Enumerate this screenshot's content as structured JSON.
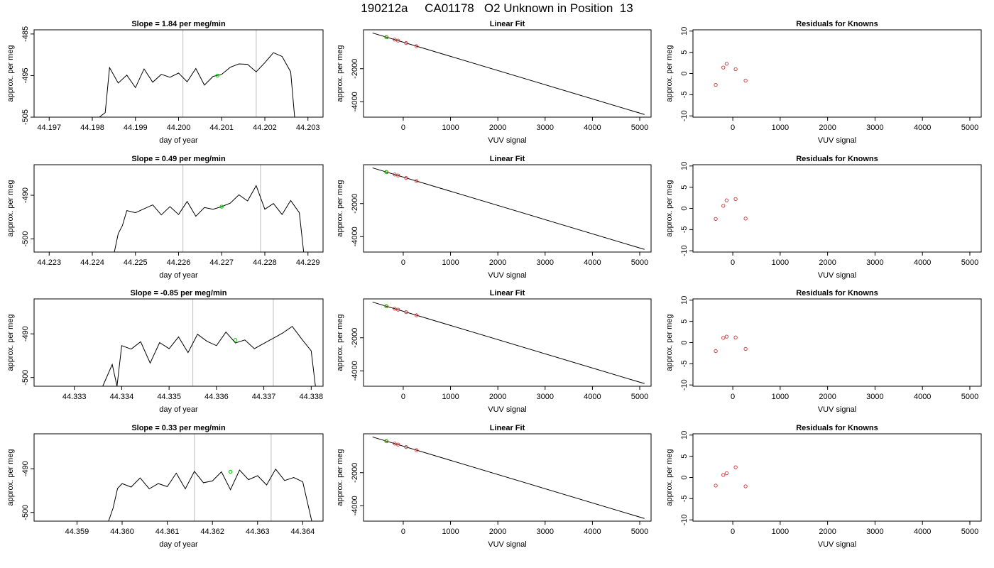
{
  "page": {
    "title": "190212a     CA01178   O2 Unknown in Position  13"
  },
  "chart_data": [
    {
      "row": 1,
      "col": 1,
      "type": "line",
      "title": "Slope =  1.84  per meg/min",
      "xlabel": "day of year",
      "ylabel": "approx. per meg",
      "xlim": [
        44.19665,
        44.20335
      ],
      "ylim": [
        -505,
        -484
      ],
      "xticks": [
        44.197,
        44.198,
        44.199,
        44.2,
        44.201,
        44.202,
        44.203
      ],
      "xtick_labels": [
        "44.197",
        "44.198",
        "44.199",
        "44.200",
        "44.201",
        "44.202",
        "44.203"
      ],
      "yticks": [
        -505,
        -495,
        -485
      ],
      "ytick_labels": [
        "-505",
        "-495",
        "-485"
      ],
      "vlines": [
        44.2001,
        44.2018
      ],
      "series": [
        {
          "x": [
            44.1981,
            44.1983,
            44.1984,
            44.1986,
            44.1988,
            44.199,
            44.1992,
            44.1994,
            44.1996,
            44.1998,
            44.2,
            44.2002,
            44.2004,
            44.2006,
            44.2008,
            44.201,
            44.2012,
            44.2014,
            44.2016,
            44.2018,
            44.202,
            44.2022,
            44.2024,
            44.2026,
            44.2027
          ],
          "values": [
            -505.5,
            -503.9,
            -493.1,
            -496.8,
            -494.9,
            -497.9,
            -493.4,
            -496.6,
            -494.7,
            -495.4,
            -494.4,
            -496.5,
            -493.3,
            -497.3,
            -495.2,
            -494.7,
            -493.0,
            -492.2,
            -492.3,
            -494.1,
            -491.9,
            -489.5,
            -490.4,
            -494.1,
            -506.0
          ]
        }
      ],
      "marker": {
        "x": 44.2009,
        "y": -495.0,
        "color": "#00cc00"
      }
    },
    {
      "row": 1,
      "col": 2,
      "type": "scatter",
      "title": "Linear Fit",
      "xlabel": "VUV signal",
      "ylabel": "approx. per meg",
      "xlim": [
        -840,
        5240
      ],
      "ylim": [
        -4930,
        350
      ],
      "xticks": [
        0,
        1000,
        2000,
        3000,
        4000,
        5000
      ],
      "xtick_labels": [
        "0",
        "1000",
        "2000",
        "3000",
        "4000",
        "5000"
      ],
      "yticks": [
        -2000,
        -4000
      ],
      "ytick_labels": [
        "-2000",
        "-4000"
      ],
      "fit_line": {
        "x": [
          -650,
          5100
        ],
        "y": [
          160,
          -4770
        ]
      },
      "series": [
        {
          "name": "",
          "x": [
            -350,
            -180,
            -110,
            60,
            280
          ],
          "values": [
            -100,
            -240,
            -300,
            -450,
            -640
          ],
          "color": "#cc3333"
        }
      ],
      "marker": {
        "x": -360,
        "y": -90,
        "color": "#00cc00"
      }
    },
    {
      "row": 1,
      "col": 3,
      "type": "scatter",
      "title": "Residuals for Knowns",
      "xlabel": "VUV signal",
      "ylabel": "approx. per meg",
      "xlim": [
        -840,
        5240
      ],
      "ylim": [
        -10.3,
        10.3
      ],
      "xticks": [
        0,
        1000,
        2000,
        3000,
        4000,
        5000
      ],
      "xtick_labels": [
        "0",
        "1000",
        "2000",
        "3000",
        "4000",
        "5000"
      ],
      "yticks": [
        -10,
        -5,
        0,
        5,
        10
      ],
      "ytick_labels": [
        "-10",
        "-5",
        "0",
        "5",
        "10"
      ],
      "series": [
        {
          "name": "",
          "x": [
            -360,
            -200,
            -130,
            60,
            270
          ],
          "values": [
            -2.7,
            1.4,
            2.3,
            1.0,
            -1.7
          ],
          "color": "#cc3333"
        }
      ]
    },
    {
      "row": 2,
      "col": 1,
      "type": "line",
      "title": "Slope =  0.49  per meg/min",
      "xlabel": "day of year",
      "ylabel": "approx. per meg",
      "xlim": [
        44.22265,
        44.22935
      ],
      "ylim": [
        -503,
        -483
      ],
      "xticks": [
        44.223,
        44.224,
        44.225,
        44.226,
        44.227,
        44.228,
        44.229
      ],
      "xtick_labels": [
        "44.223",
        "44.224",
        "44.225",
        "44.226",
        "44.227",
        "44.228",
        "44.229"
      ],
      "yticks": [
        -500,
        -490
      ],
      "ytick_labels": [
        "-500",
        "-490"
      ],
      "vlines": [
        44.2261,
        44.2279
      ],
      "series": [
        {
          "x": [
            44.2245,
            44.2246,
            44.2247,
            44.2248,
            44.225,
            44.2252,
            44.2254,
            44.2256,
            44.2258,
            44.226,
            44.2262,
            44.2264,
            44.2266,
            44.2268,
            44.227,
            44.2272,
            44.2274,
            44.2276,
            44.2278,
            44.228,
            44.2282,
            44.2284,
            44.2286,
            44.2288,
            44.2289
          ],
          "values": [
            -503.5,
            -498.8,
            -496.9,
            -493.5,
            -494.0,
            -493.1,
            -492.2,
            -494.5,
            -492.6,
            -494.4,
            -491.4,
            -494.8,
            -492.8,
            -493.2,
            -492.6,
            -491.8,
            -489.9,
            -491.3,
            -487.8,
            -493.2,
            -491.9,
            -494.4,
            -491.2,
            -494.0,
            -503.0
          ]
        }
      ],
      "marker": {
        "x": 44.227,
        "y": -492.6,
        "color": "#00cc00"
      }
    },
    {
      "row": 2,
      "col": 2,
      "type": "scatter",
      "title": "Linear Fit",
      "xlabel": "VUV signal",
      "ylabel": "approx. per meg",
      "xlim": [
        -840,
        5240
      ],
      "ylim": [
        -4930,
        350
      ],
      "xticks": [
        0,
        1000,
        2000,
        3000,
        4000,
        5000
      ],
      "xtick_labels": [
        "0",
        "1000",
        "2000",
        "3000",
        "4000",
        "5000"
      ],
      "yticks": [
        -2000,
        -4000
      ],
      "ytick_labels": [
        "-2000",
        "-4000"
      ],
      "fit_line": {
        "x": [
          -650,
          5100
        ],
        "y": [
          160,
          -4770
        ]
      },
      "series": [
        {
          "name": "",
          "x": [
            -350,
            -180,
            -110,
            60,
            280
          ],
          "values": [
            -100,
            -240,
            -300,
            -450,
            -640
          ],
          "color": "#cc3333"
        }
      ],
      "marker": {
        "x": -360,
        "y": -90,
        "color": "#00cc00"
      }
    },
    {
      "row": 2,
      "col": 3,
      "type": "scatter",
      "title": "Residuals for Knowns",
      "xlabel": "VUV signal",
      "ylabel": "approx. per meg",
      "xlim": [
        -840,
        5240
      ],
      "ylim": [
        -10.3,
        10.3
      ],
      "xticks": [
        0,
        1000,
        2000,
        3000,
        4000,
        5000
      ],
      "xtick_labels": [
        "0",
        "1000",
        "2000",
        "3000",
        "4000",
        "5000"
      ],
      "yticks": [
        -10,
        -5,
        0,
        5,
        10
      ],
      "ytick_labels": [
        "-10",
        "-5",
        "0",
        "5",
        "10"
      ],
      "series": [
        {
          "name": "",
          "x": [
            -360,
            -200,
            -130,
            60,
            270
          ],
          "values": [
            -2.5,
            0.6,
            1.9,
            2.2,
            -2.4
          ],
          "color": "#cc3333"
        }
      ]
    },
    {
      "row": 3,
      "col": 1,
      "type": "line",
      "title": "Slope =  -0.85  per meg/min",
      "xlabel": "day of year",
      "ylabel": "approx. per meg",
      "xlim": [
        44.33215,
        44.33825
      ],
      "ylim": [
        -502,
        -482
      ],
      "xticks": [
        44.333,
        44.334,
        44.335,
        44.336,
        44.337,
        44.338
      ],
      "xtick_labels": [
        "44.333",
        "44.334",
        "44.335",
        "44.336",
        "44.337",
        "44.338"
      ],
      "yticks": [
        -500,
        -490
      ],
      "ytick_labels": [
        "-500",
        "-490"
      ],
      "vlines": [
        44.3355,
        44.3372
      ],
      "series": [
        {
          "x": [
            44.3336,
            44.3338,
            44.3339,
            44.334,
            44.3342,
            44.3344,
            44.3346,
            44.3348,
            44.335,
            44.3352,
            44.3354,
            44.3356,
            44.3358,
            44.336,
            44.3362,
            44.3364,
            44.3366,
            44.3368,
            44.337,
            44.3372,
            44.3374,
            44.3376,
            44.3378,
            44.338,
            44.3381
          ],
          "values": [
            -502.0,
            -497.0,
            -502.0,
            -492.7,
            -493.5,
            -491.8,
            -496.7,
            -492.0,
            -493.4,
            -490.7,
            -494.3,
            -490.1,
            -491.7,
            -492.7,
            -489.6,
            -492.1,
            -491.4,
            -493.4,
            -492.2,
            -491.0,
            -489.8,
            -488.3,
            -491.2,
            -493.9,
            -503.0
          ]
        }
      ],
      "marker": {
        "x": 44.3364,
        "y": -491.4,
        "color": "#00cc00"
      }
    },
    {
      "row": 3,
      "col": 2,
      "type": "scatter",
      "title": "Linear Fit",
      "xlabel": "VUV signal",
      "ylabel": "approx. per meg",
      "xlim": [
        -840,
        5240
      ],
      "ylim": [
        -4930,
        350
      ],
      "xticks": [
        0,
        1000,
        2000,
        3000,
        4000,
        5000
      ],
      "xtick_labels": [
        "0",
        "1000",
        "2000",
        "3000",
        "4000",
        "5000"
      ],
      "yticks": [
        -2000,
        -4000
      ],
      "ytick_labels": [
        "-2000",
        "-4000"
      ],
      "fit_line": {
        "x": [
          -650,
          5100
        ],
        "y": [
          160,
          -4770
        ]
      },
      "series": [
        {
          "name": "",
          "x": [
            -350,
            -180,
            -110,
            60,
            280
          ],
          "values": [
            -100,
            -240,
            -300,
            -450,
            -640
          ],
          "color": "#cc3333"
        }
      ],
      "marker": {
        "x": -360,
        "y": -90,
        "color": "#00cc00"
      }
    },
    {
      "row": 3,
      "col": 3,
      "type": "scatter",
      "title": "Residuals for Knowns",
      "xlabel": "VUV signal",
      "ylabel": "approx. per meg",
      "xlim": [
        -840,
        5240
      ],
      "ylim": [
        -10.3,
        10.3
      ],
      "xticks": [
        0,
        1000,
        2000,
        3000,
        4000,
        5000
      ],
      "xtick_labels": [
        "0",
        "1000",
        "2000",
        "3000",
        "4000",
        "5000"
      ],
      "yticks": [
        -10,
        -5,
        0,
        5,
        10
      ],
      "ytick_labels": [
        "-10",
        "-5",
        "0",
        "5",
        "10"
      ],
      "series": [
        {
          "name": "",
          "x": [
            -360,
            -200,
            -130,
            60,
            270
          ],
          "values": [
            -2.0,
            1.1,
            1.4,
            1.2,
            -1.5
          ],
          "color": "#cc3333"
        }
      ]
    },
    {
      "row": 4,
      "col": 1,
      "type": "line",
      "title": "Slope =  0.33  per meg/min",
      "xlabel": "day of year",
      "ylabel": "approx. per meg",
      "xlim": [
        44.35805,
        44.36445
      ],
      "ylim": [
        -502,
        -482
      ],
      "xticks": [
        44.359,
        44.36,
        44.361,
        44.362,
        44.363,
        44.364
      ],
      "xtick_labels": [
        "44.359",
        "44.360",
        "44.361",
        "44.362",
        "44.363",
        "44.364"
      ],
      "yticks": [
        -500,
        -490
      ],
      "ytick_labels": [
        "-500",
        "-490"
      ],
      "vlines": [
        44.3616,
        44.3633
      ],
      "series": [
        {
          "x": [
            44.3597,
            44.3598,
            44.3599,
            44.36,
            44.3602,
            44.3604,
            44.3606,
            44.3608,
            44.361,
            44.3612,
            44.3614,
            44.3616,
            44.3618,
            44.362,
            44.3622,
            44.3624,
            44.3626,
            44.3628,
            44.363,
            44.3632,
            44.3634,
            44.3636,
            44.3638,
            44.364,
            44.3642
          ],
          "values": [
            -502.0,
            -499.0,
            -494.5,
            -493.4,
            -494.2,
            -492.1,
            -494.6,
            -493.4,
            -494.1,
            -491.0,
            -494.6,
            -490.6,
            -493.2,
            -492.8,
            -490.7,
            -494.8,
            -490.3,
            -492.5,
            -491.6,
            -493.7,
            -490.1,
            -492.7,
            -492.0,
            -493.0,
            -502.0
          ]
        }
      ],
      "marker": {
        "x": 44.3624,
        "y": -490.7,
        "color": "#00cc00"
      }
    },
    {
      "row": 4,
      "col": 2,
      "type": "scatter",
      "title": "Linear Fit",
      "xlabel": "VUV signal",
      "ylabel": "approx. per meg",
      "xlim": [
        -840,
        5240
      ],
      "ylim": [
        -4930,
        350
      ],
      "xticks": [
        0,
        1000,
        2000,
        3000,
        4000,
        5000
      ],
      "xtick_labels": [
        "0",
        "1000",
        "2000",
        "3000",
        "4000",
        "5000"
      ],
      "yticks": [
        -2000,
        -4000
      ],
      "ytick_labels": [
        "-2000",
        "-4000"
      ],
      "fit_line": {
        "x": [
          -650,
          5100
        ],
        "y": [
          160,
          -4770
        ]
      },
      "series": [
        {
          "name": "",
          "x": [
            -350,
            -180,
            -110,
            60,
            280
          ],
          "values": [
            -100,
            -240,
            -300,
            -450,
            -640
          ],
          "color": "#cc3333"
        }
      ],
      "marker": {
        "x": -360,
        "y": -90,
        "color": "#00cc00"
      }
    },
    {
      "row": 4,
      "col": 3,
      "type": "scatter",
      "title": "Residuals for Knowns",
      "xlabel": "VUV signal",
      "ylabel": "approx. per meg",
      "xlim": [
        -840,
        5240
      ],
      "ylim": [
        -10.3,
        10.3
      ],
      "xticks": [
        0,
        1000,
        2000,
        3000,
        4000,
        5000
      ],
      "xtick_labels": [
        "0",
        "1000",
        "2000",
        "3000",
        "4000",
        "5000"
      ],
      "yticks": [
        -10,
        -5,
        0,
        5,
        10
      ],
      "ytick_labels": [
        "-10",
        "-5",
        "0",
        "5",
        "10"
      ],
      "series": [
        {
          "name": "",
          "x": [
            -360,
            -200,
            -130,
            60,
            270
          ],
          "values": [
            -1.9,
            0.6,
            1.0,
            2.4,
            -2.1
          ],
          "color": "#cc3333"
        }
      ]
    }
  ]
}
